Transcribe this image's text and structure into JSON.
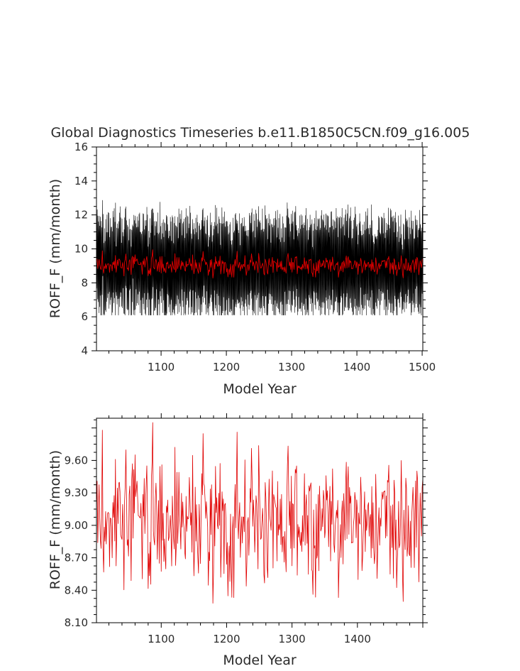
{
  "figure_title": "Global Diagnostics Timeseries b.e11.B1850C5CN.f09_g16.005",
  "chart_data": [
    {
      "type": "line",
      "title": "Global Diagnostics Timeseries b.e11.B1850C5CN.f09_g16.005",
      "xlabel": "Model Year",
      "ylabel": "ROFF_F (mm/month)",
      "xlim": [
        1001,
        1501
      ],
      "ylim": [
        4,
        16
      ],
      "x_ticks": [
        1100,
        1200,
        1300,
        1400,
        1500
      ],
      "y_ticks": [
        4,
        6,
        8,
        10,
        12,
        14,
        16
      ],
      "grid": false,
      "series": [
        {
          "color": "#000000",
          "description_values": "monthly values, about 6 months per year plotted, range approx 6.1 to 14.0 centered near 9.2",
          "seed": 7,
          "mean": 9.2,
          "min": 6.1,
          "max": 14.0
        },
        {
          "color": "#e00000",
          "description_values": "annual mean values from 1001 to 1500, range approx 8.3 to 9.9",
          "seed": 3,
          "mean": 9.18,
          "min": 8.28,
          "max": 9.95
        }
      ]
    },
    {
      "type": "line",
      "title": "",
      "xlabel": "Model Year",
      "ylabel": "ROFF_F (mm/month)",
      "xlim": [
        1001,
        1500
      ],
      "ylim": [
        8.1,
        9.99
      ],
      "x_ticks": [
        1100,
        1200,
        1300,
        1400
      ],
      "y_ticks": [
        "8.10",
        "8.40",
        "8.70",
        "9.00",
        "9.30",
        "9.60"
      ],
      "grid": false,
      "series": [
        {
          "color": "#e00000",
          "seed": 3,
          "mean": 9.18,
          "min": 8.28,
          "max": 9.95
        }
      ]
    }
  ]
}
